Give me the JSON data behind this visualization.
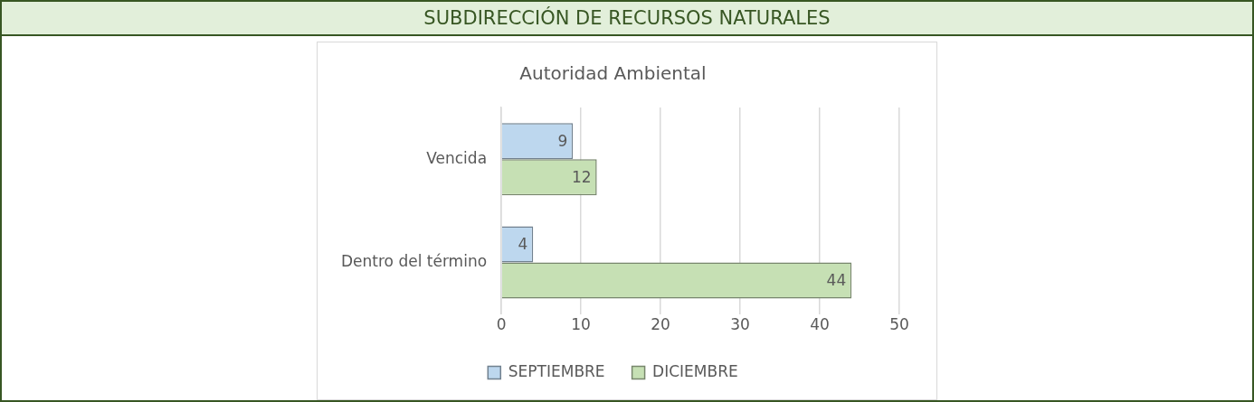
{
  "chart_data": {
    "type": "bar",
    "title": "SUBDIRECCIÓN DE RECURSOS NATURALES",
    "subtitle": "Autoridad Ambiental",
    "orientation": "horizontal",
    "categories": [
      "Vencida",
      "Dentro del término"
    ],
    "series": [
      {
        "name": "SEPTIEMBRE",
        "color": "#bdd7ee",
        "values": [
          9,
          4
        ]
      },
      {
        "name": "DICIEMBRE",
        "color": "#c6e0b4",
        "values": [
          12,
          44
        ]
      }
    ],
    "xlim": [
      0,
      50
    ],
    "xticks": [
      0,
      10,
      20,
      30,
      40,
      50
    ],
    "grid": "x",
    "legend": "bottom",
    "data_labels": true
  }
}
